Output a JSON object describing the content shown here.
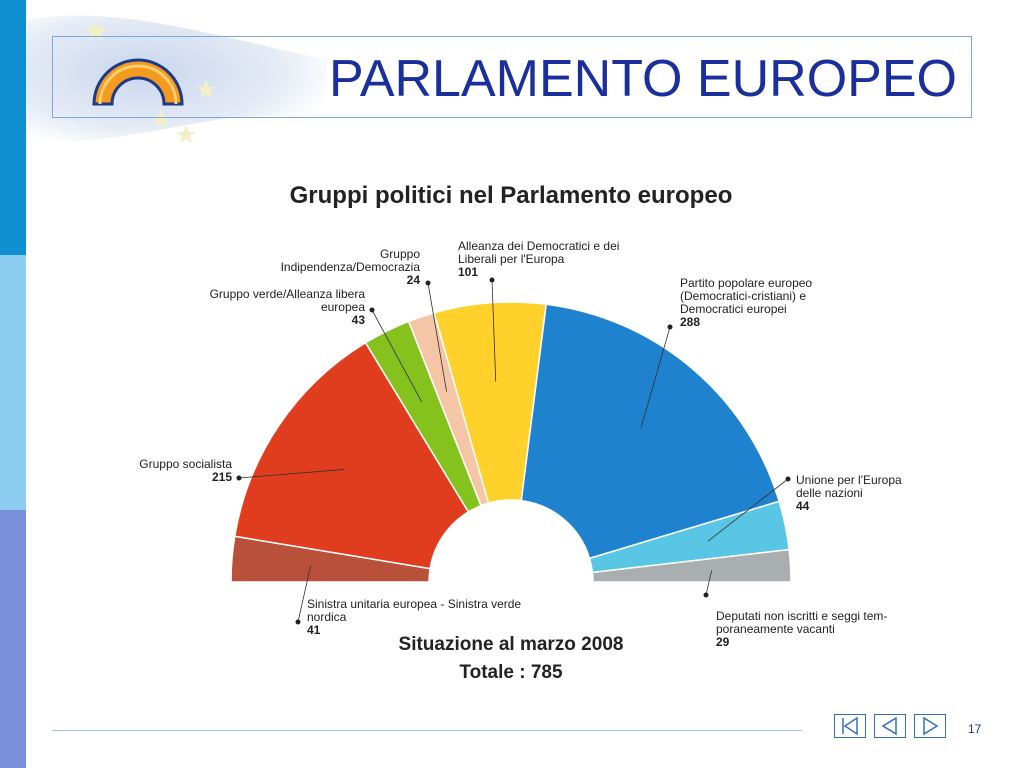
{
  "slide": {
    "title": "PARLAMENTO EUROPEO",
    "page_number": "17"
  },
  "nav": {
    "first_icon": "first-slide-icon",
    "prev_icon": "previous-slide-icon",
    "next_icon": "next-slide-icon"
  },
  "colors": {
    "accent": "#1a2f9c",
    "left_bar_top": "#0f8fcf",
    "left_bar_mid": "#8ecdf2",
    "left_bar_bottom": "#7a8fd8"
  },
  "chart_data": {
    "type": "pie",
    "subtype": "hemicycle",
    "title": "Gruppi politici nel Parlamento europeo",
    "footnote_1": "Situazione al marzo 2008",
    "footnote_2": "Totale : 785",
    "slices": [
      {
        "label_lines": [
          "Sinistra unitaria europea - Sinistra verde",
          "nordica"
        ],
        "value": 41,
        "color": "#b8503a"
      },
      {
        "label_lines": [
          "Gruppo socialista"
        ],
        "value": 215,
        "color": "#e03c1e"
      },
      {
        "label_lines": [
          "Gruppo verde/Alleanza libera",
          "europea"
        ],
        "value": 43,
        "color": "#86c21e"
      },
      {
        "label_lines": [
          "Gruppo",
          "Indipendenza/Democrazia"
        ],
        "value": 24,
        "color": "#f5c6a6"
      },
      {
        "label_lines": [
          "Alleanza dei Democratici e dei",
          "Liberali per l'Europa"
        ],
        "value": 101,
        "color": "#ffd12a"
      },
      {
        "label_lines": [
          "Partito popolare europeo",
          "(Democratici-cristiani) e",
          "Democratici europei"
        ],
        "value": 288,
        "color": "#1e82cf"
      },
      {
        "label_lines": [
          "Unione per l'Europa",
          "delle nazioni"
        ],
        "value": 44,
        "color": "#5ac6e6"
      },
      {
        "label_lines": [
          "Deputati non iscritti e seggi tem-",
          "poraneamente vacanti"
        ],
        "value": 29,
        "color": "#a9aeb0"
      }
    ]
  }
}
